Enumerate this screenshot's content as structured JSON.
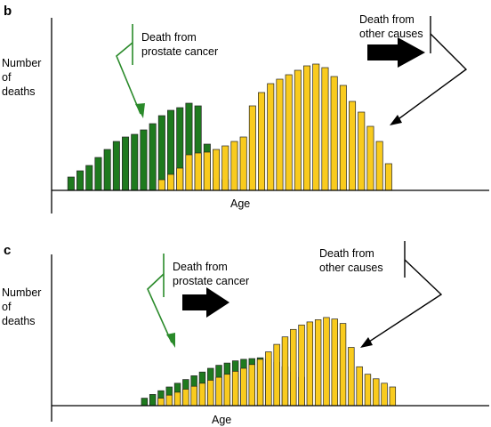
{
  "colors": {
    "green": "#1e7a1e",
    "yellow": "#f9cb1e",
    "bar_stroke": "#222222",
    "annotation_green": "#2a8a2a",
    "axis": "#000000"
  },
  "chart_data": [
    {
      "type": "bar",
      "panel_label": "b",
      "title": "",
      "ylabel": [
        "Number",
        "of",
        "deaths"
      ],
      "xlabel": "Age",
      "xlim": [
        0,
        38
      ],
      "ylim": [
        0,
        150
      ],
      "series": [
        {
          "name": "Death from prostate cancer",
          "color_key": "green",
          "x0": 1,
          "values": [
            15,
            22,
            28,
            37,
            46,
            55,
            60,
            63,
            68,
            75,
            84,
            90,
            93,
            98,
            95,
            52,
            14,
            12
          ]
        },
        {
          "name": "Death from other causes",
          "color_key": "yellow",
          "x0": 11,
          "values": [
            12,
            18,
            25,
            40,
            42,
            43,
            46,
            50,
            55,
            60,
            95,
            110,
            120,
            125,
            130,
            135,
            140,
            142,
            138,
            128,
            118,
            100,
            88,
            72,
            55,
            30
          ]
        }
      ],
      "annotations": [
        {
          "text": [
            "Death from",
            "prostate cancer"
          ],
          "color_key": "annotation_green"
        },
        {
          "text": [
            "Death from",
            "other causes"
          ],
          "color_key": "axis"
        }
      ]
    },
    {
      "type": "bar",
      "panel_label": "c",
      "title": "",
      "ylabel": [
        "Number",
        "of",
        "deaths"
      ],
      "xlabel": "Age",
      "xlim": [
        0,
        38
      ],
      "ylim": [
        0,
        150
      ],
      "series": [
        {
          "name": "Death from prostate cancer",
          "color_key": "green",
          "x0": 10,
          "values": [
            10,
            15,
            20,
            25,
            30,
            35,
            40,
            45,
            50,
            54,
            57,
            60,
            62,
            63,
            64,
            62,
            58,
            52,
            45,
            38
          ]
        },
        {
          "name": "Death from other causes",
          "color_key": "yellow",
          "x0": 12,
          "values": [
            10,
            14,
            18,
            22,
            26,
            30,
            34,
            38,
            42,
            46,
            50,
            55,
            62,
            72,
            82,
            92,
            102,
            108,
            112,
            115,
            118,
            116,
            110,
            78,
            52,
            42,
            36,
            30,
            25
          ]
        }
      ],
      "annotations": [
        {
          "text": [
            "Death from",
            "prostate cancer"
          ],
          "color_key": "annotation_green"
        },
        {
          "text": [
            "Death from",
            "other causes"
          ],
          "color_key": "axis"
        }
      ]
    }
  ]
}
